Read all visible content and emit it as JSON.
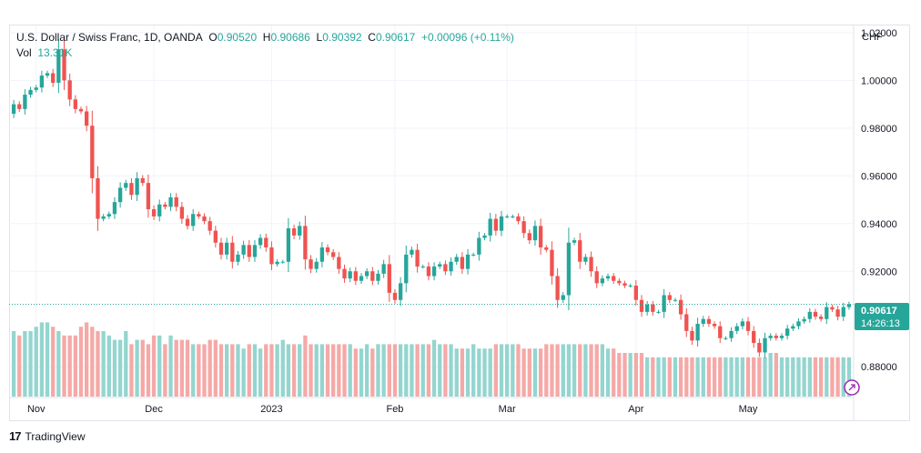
{
  "colors": {
    "up": "#26a69a",
    "down": "#ef5350",
    "up_vol": "#94d5cf",
    "down_vol": "#f5a9a7",
    "grid": "#f0f3fa",
    "price_label_bg": "#26a69a"
  },
  "legend": {
    "symbol": "U.S. Dollar / Swiss Franc, 1D, OANDA",
    "o_key": "O",
    "o_val": "0.90520",
    "h_key": "H",
    "h_val": "0.90686",
    "l_key": "L",
    "l_val": "0.90392",
    "c_key": "C",
    "c_val": "0.90617",
    "change": "+0.00096 (+0.11%)",
    "vol_key": "Vol",
    "vol_val": "13.31K"
  },
  "price_label": {
    "value": "0.90617",
    "countdown": "14:26:13"
  },
  "branding": {
    "name": "TradingView",
    "icon": "tradingview-logo-icon"
  },
  "chart_data": {
    "type": "candlestick",
    "currency": "CHF",
    "yticks": [
      "1.02000",
      "1.00000",
      "0.98000",
      "0.96000",
      "0.94000",
      "0.92000",
      "0.88000"
    ],
    "xticks": [
      {
        "label": "Nov",
        "index": 4
      },
      {
        "label": "Dec",
        "index": 25
      },
      {
        "label": "2023",
        "index": 46
      },
      {
        "label": "Feb",
        "index": 68
      },
      {
        "label": "Mar",
        "index": 88
      },
      {
        "label": "Apr",
        "index": 111
      },
      {
        "label": "May",
        "index": 131
      }
    ],
    "ylim": [
      0.8675,
      1.023
    ],
    "close_line": 0.90617,
    "volume_max": 20,
    "closes": [
      0.99,
      0.988,
      0.994,
      0.996,
      0.997,
      1.002,
      1.003,
      0.999,
      1.013,
      1.0,
      0.992,
      0.988,
      0.987,
      0.981,
      0.959,
      0.942,
      0.943,
      0.944,
      0.949,
      0.955,
      0.957,
      0.952,
      0.959,
      0.957,
      0.946,
      0.943,
      0.948,
      0.947,
      0.951,
      0.947,
      0.942,
      0.939,
      0.944,
      0.943,
      0.941,
      0.937,
      0.932,
      0.927,
      0.932,
      0.924,
      0.927,
      0.931,
      0.926,
      0.931,
      0.934,
      0.93,
      0.923,
      0.924,
      0.924,
      0.938,
      0.935,
      0.939,
      0.925,
      0.921,
      0.924,
      0.93,
      0.928,
      0.926,
      0.921,
      0.917,
      0.92,
      0.916,
      0.918,
      0.92,
      0.916,
      0.919,
      0.923,
      0.911,
      0.908,
      0.915,
      0.927,
      0.929,
      0.922,
      0.922,
      0.918,
      0.922,
      0.923,
      0.92,
      0.924,
      0.926,
      0.921,
      0.927,
      0.927,
      0.934,
      0.935,
      0.942,
      0.937,
      0.943,
      0.943,
      0.943,
      0.941,
      0.936,
      0.933,
      0.939,
      0.93,
      0.929,
      0.918,
      0.908,
      0.91,
      0.932,
      0.933,
      0.924,
      0.926,
      0.92,
      0.915,
      0.917,
      0.918,
      0.916,
      0.915,
      0.914,
      0.914,
      0.908,
      0.903,
      0.906,
      0.903,
      0.903,
      0.91,
      0.908,
      0.908,
      0.902,
      0.895,
      0.891,
      0.898,
      0.9,
      0.898,
      0.897,
      0.892,
      0.892,
      0.895,
      0.897,
      0.899,
      0.895,
      0.89,
      0.886,
      0.892,
      0.893,
      0.892,
      0.893,
      0.896,
      0.897,
      0.899,
      0.9,
      0.903,
      0.901,
      0.9,
      0.905,
      0.904,
      0.901,
      0.905,
      0.9062
    ],
    "volumes": [
      15,
      14,
      15,
      15,
      16,
      17,
      17,
      16,
      15,
      14,
      14,
      14,
      16,
      17,
      16,
      15,
      15,
      14,
      13,
      13,
      15,
      12,
      13,
      13,
      12,
      14,
      14,
      12,
      14,
      13,
      13,
      13,
      12,
      12,
      12,
      13,
      13,
      12,
      12,
      12,
      12,
      11,
      12,
      12,
      11,
      12,
      12,
      12,
      13,
      12,
      12,
      12,
      14,
      12,
      12,
      12,
      12,
      12,
      12,
      12,
      12,
      11,
      11,
      12,
      11,
      12,
      12,
      12,
      12,
      12,
      12,
      12,
      12,
      12,
      12,
      13,
      12,
      12,
      12,
      11,
      11,
      11,
      12,
      11,
      11,
      11,
      12,
      12,
      12,
      12,
      12,
      11,
      11,
      11,
      11,
      12,
      12,
      12,
      12,
      12,
      12,
      12,
      12,
      12,
      12,
      12,
      11,
      11,
      10,
      10,
      10,
      10,
      10,
      9,
      9,
      9,
      9,
      9,
      9,
      9,
      9,
      9,
      9,
      9,
      9,
      9,
      9,
      9,
      9,
      9,
      9,
      9,
      9,
      9,
      9,
      10,
      10,
      9,
      9,
      9,
      9,
      9,
      9,
      9,
      9,
      9,
      9,
      9,
      9,
      9,
      9,
      9,
      9
    ]
  }
}
